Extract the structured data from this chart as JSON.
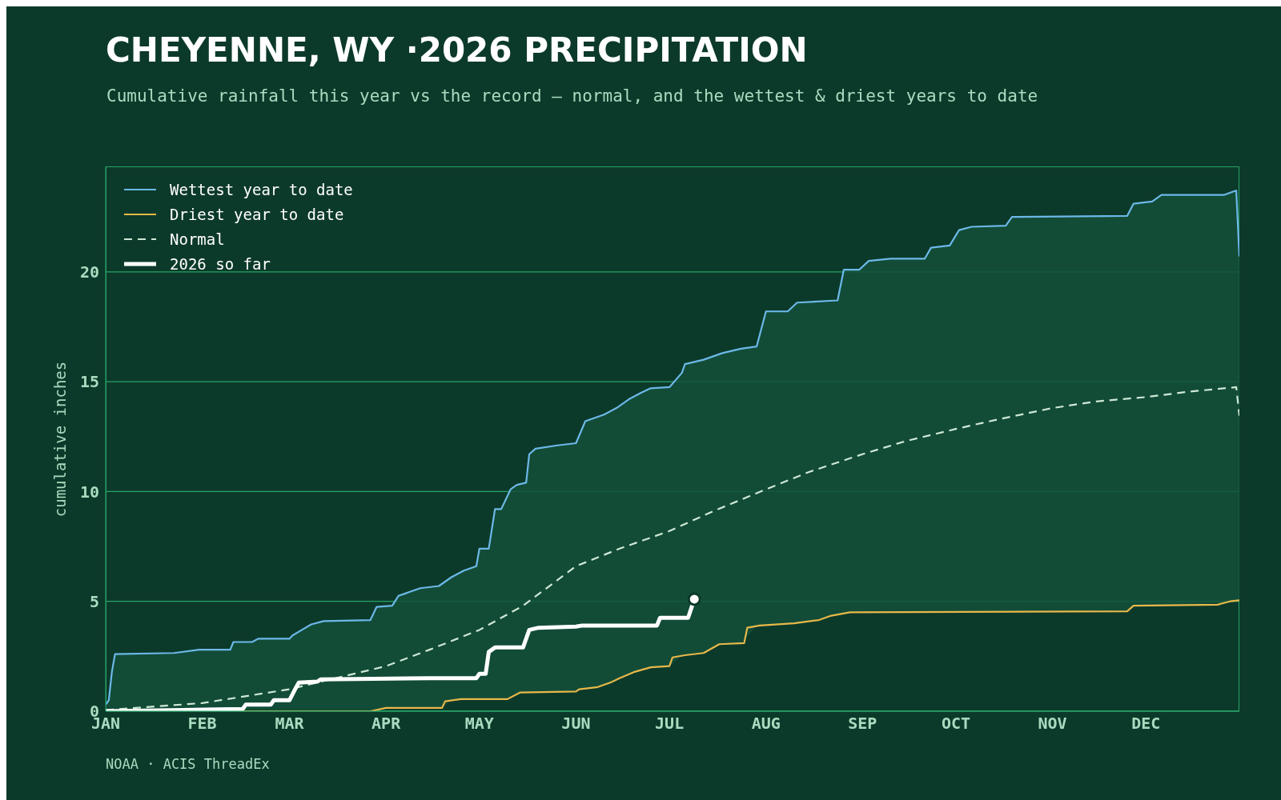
{
  "chart_data": {
    "type": "line",
    "title": "CHEYENNE, WY ·2026 PRECIPITATION",
    "subtitle": "Cumulative rainfall this year vs the record — normal, and the wettest & driest years to date",
    "ylabel": "cumulative inches",
    "xlim": [
      "--01-01",
      "--12-31"
    ],
    "xticks": [
      {
        "value": "--01-01",
        "label": "JAN"
      },
      {
        "value": "--02-01",
        "label": "FEB"
      },
      {
        "value": "--03-01",
        "label": "MAR"
      },
      {
        "value": "--04-01",
        "label": "APR"
      },
      {
        "value": "--05-01",
        "label": "MAY"
      },
      {
        "value": "--06-01",
        "label": "JUN"
      },
      {
        "value": "--07-01",
        "label": "JUL"
      },
      {
        "value": "--08-01",
        "label": "AUG"
      },
      {
        "value": "--09-01",
        "label": "SEP"
      },
      {
        "value": "--10-01",
        "label": "OCT"
      },
      {
        "value": "--11-01",
        "label": "NOV"
      },
      {
        "value": "--12-01",
        "label": "DEC"
      }
    ],
    "ylim": [
      0,
      24.8
    ],
    "yticks": [
      0,
      5,
      10,
      15,
      20
    ],
    "grid": "y",
    "legend": "top left",
    "series": [
      {
        "name": "Wettest year to date",
        "color": "#6cb8e8",
        "lower": [
          0,
          0,
          0,
          0,
          0,
          0,
          0,
          0,
          0,
          0,
          0,
          0,
          0,
          0,
          0,
          0,
          0.06,
          0.15,
          0.15,
          0.15,
          0.15,
          0.15,
          0.49,
          0.55,
          0.55,
          0.55,
          0.55,
          0.55,
          0.55,
          0.63,
          0.78,
          0.85,
          0.85,
          0.85,
          0.87,
          0.9,
          1.03,
          1.07,
          1.2,
          1.43,
          1.68,
          1.88,
          2.0,
          2.05,
          2.53,
          2.55,
          2.65,
          3.06,
          3.09,
          3.88,
          3.92,
          3.98,
          4.0,
          4.4,
          4.45,
          4.5,
          4.5,
          4.5,
          4.51,
          4.51,
          4.51,
          4.52,
          4.52,
          4.53,
          4.53,
          4.55,
          4.8,
          4.81,
          4.81,
          4.93,
          5.02,
          5.03,
          5.05
        ],
        "upper": [
          0.3,
          0.5,
          1.8,
          2.6,
          2.65,
          2.8,
          2.8,
          3.15,
          3.15,
          3.3,
          3.3,
          3.45,
          3.7,
          3.95,
          4.1,
          4.15,
          4.75,
          4.8,
          5.25,
          5.35,
          5.6,
          5.7,
          6.1,
          6.4,
          6.6,
          7.4,
          7.4,
          9.2,
          9.2,
          10.1,
          10.3,
          10.4,
          11.7,
          11.95,
          12.1,
          12.2,
          13.2,
          13.3,
          13.5,
          13.8,
          14.2,
          14.5,
          14.7,
          14.75,
          15.4,
          15.8,
          16.0,
          16.3,
          16.5,
          16.6,
          18.2,
          18.2,
          18.6,
          18.7,
          20.1,
          20.1,
          20.5,
          20.6,
          20.6,
          21.1,
          21.2,
          21.9,
          22.05,
          22.1,
          22.5,
          22.55,
          23.1,
          23.2,
          23.5,
          23.5,
          23.65,
          23.7,
          20.7
        ],
        "line_style": "solid",
        "x": [
          "--01-01",
          "--01-02",
          "--01-03",
          "--01-04",
          "--01-23",
          "--01-31",
          "--02-10",
          "--02-11",
          "--02-17",
          "--02-19",
          "--03-01",
          "--03-02",
          "--03-05",
          "--03-08",
          "--03-12",
          "--03-27",
          "--03-29",
          "--04-03",
          "--04-05",
          "--04-07",
          "--04-12",
          "--04-18",
          "--04-22",
          "--04-26",
          "--04-30",
          "--05-01",
          "--05-04",
          "--05-06",
          "--05-08",
          "--05-11",
          "--05-13",
          "--05-16",
          "--05-17",
          "--05-19",
          "--05-26",
          "--06-01",
          "--06-04",
          "--06-06",
          "--06-10",
          "--06-14",
          "--06-18",
          "--06-22",
          "--06-25",
          "--07-01",
          "--07-05",
          "--07-06",
          "--07-12",
          "--07-18",
          "--07-24",
          "--07-29",
          "--08-01",
          "--08-08",
          "--08-11",
          "--08-24",
          "--08-26",
          "--08-31",
          "--09-03",
          "--09-10",
          "--09-21",
          "--09-23",
          "--09-29",
          "--10-02",
          "--10-06",
          "--10-17",
          "--10-19",
          "--11-25",
          "--11-27",
          "--12-03",
          "--12-06",
          "--12-26",
          "--12-29",
          "--12-30",
          "--12-31"
        ],
        "values": [
          0.3,
          0.5,
          1.8,
          2.6,
          2.65,
          2.8,
          2.8,
          3.15,
          3.15,
          3.3,
          3.3,
          3.45,
          3.7,
          3.95,
          4.1,
          4.15,
          4.75,
          4.8,
          5.25,
          5.35,
          5.6,
          5.7,
          6.1,
          6.4,
          6.6,
          7.4,
          7.4,
          9.2,
          9.2,
          10.1,
          10.3,
          10.4,
          11.7,
          11.95,
          12.1,
          12.2,
          13.2,
          13.3,
          13.5,
          13.8,
          14.2,
          14.5,
          14.7,
          14.75,
          15.4,
          15.8,
          16.0,
          16.3,
          16.5,
          16.6,
          18.2,
          18.2,
          18.6,
          18.7,
          20.1,
          20.1,
          20.5,
          20.6,
          20.6,
          21.1,
          21.2,
          21.9,
          22.05,
          22.1,
          22.5,
          22.55,
          23.1,
          23.2,
          23.5,
          23.5,
          23.65,
          23.7,
          20.7
        ]
      },
      {
        "name": "Driest year to date",
        "color": "#e8b84a",
        "line_style": "solid",
        "x": [
          "--01-01",
          "--03-27",
          "--04-01",
          "--04-19",
          "--04-20",
          "--04-25",
          "--05-10",
          "--05-14",
          "--06-01",
          "--06-02",
          "--06-08",
          "--06-12",
          "--06-15",
          "--06-20",
          "--06-25",
          "--07-01",
          "--07-02",
          "--07-06",
          "--07-12",
          "--07-17",
          "--07-25",
          "--07-26",
          "--07-30",
          "--08-10",
          "--08-18",
          "--08-22",
          "--08-28",
          "--11-25",
          "--11-27",
          "--12-24",
          "--12-28",
          "--12-31"
        ],
        "values": [
          0,
          0,
          0.15,
          0.15,
          0.45,
          0.55,
          0.55,
          0.85,
          0.9,
          1.0,
          1.1,
          1.3,
          1.5,
          1.8,
          2.0,
          2.05,
          2.45,
          2.55,
          2.65,
          3.05,
          3.1,
          3.8,
          3.9,
          4.0,
          4.15,
          4.35,
          4.5,
          4.55,
          4.8,
          4.85,
          5.0,
          5.05
        ]
      },
      {
        "name": "Normal",
        "color": "#cfe8d6",
        "line_style": "dashed",
        "x": [
          "--01-01",
          "--02-01",
          "--03-01",
          "--04-01",
          "--04-15",
          "--05-01",
          "--05-15",
          "--06-01",
          "--06-15",
          "--07-01",
          "--07-15",
          "--08-01",
          "--08-15",
          "--09-01",
          "--09-15",
          "--10-01",
          "--10-15",
          "--11-01",
          "--11-15",
          "--12-01",
          "--12-15",
          "--12-30",
          "--12-31"
        ],
        "values": [
          0.05,
          0.37,
          1.0,
          2.05,
          2.8,
          3.7,
          4.8,
          6.6,
          7.4,
          8.2,
          9.1,
          10.1,
          10.9,
          11.7,
          12.3,
          12.85,
          13.3,
          13.8,
          14.1,
          14.3,
          14.55,
          14.75,
          13.45
        ]
      },
      {
        "name": "2026 so far",
        "color": "#ffffff",
        "line_style": "solid",
        "x": [
          "--01-01",
          "--01-22",
          "--02-14",
          "--02-15",
          "--02-23",
          "--02-24",
          "--03-01",
          "--03-03",
          "--03-04",
          "--03-10",
          "--03-11",
          "--04-15",
          "--04-30",
          "--05-01",
          "--05-03",
          "--05-04",
          "--05-06",
          "--05-15",
          "--05-17",
          "--05-20",
          "--06-01",
          "--06-03",
          "--06-27",
          "--06-28",
          "--07-07",
          "--07-09"
        ],
        "values": [
          0,
          0.05,
          0.1,
          0.3,
          0.3,
          0.5,
          0.5,
          1.05,
          1.3,
          1.35,
          1.45,
          1.5,
          1.5,
          1.7,
          1.7,
          2.7,
          2.9,
          2.9,
          3.7,
          3.8,
          3.85,
          3.9,
          3.9,
          4.25,
          4.25,
          5.1
        ]
      },
      {
        "type": "scatter",
        "color": "#ffffff",
        "marker": "circle",
        "x": [
          "--07-09"
        ],
        "values": [
          5.1
        ]
      }
    ],
    "annotations": [
      "NOAA · ACIS ThreadEx"
    ]
  }
}
